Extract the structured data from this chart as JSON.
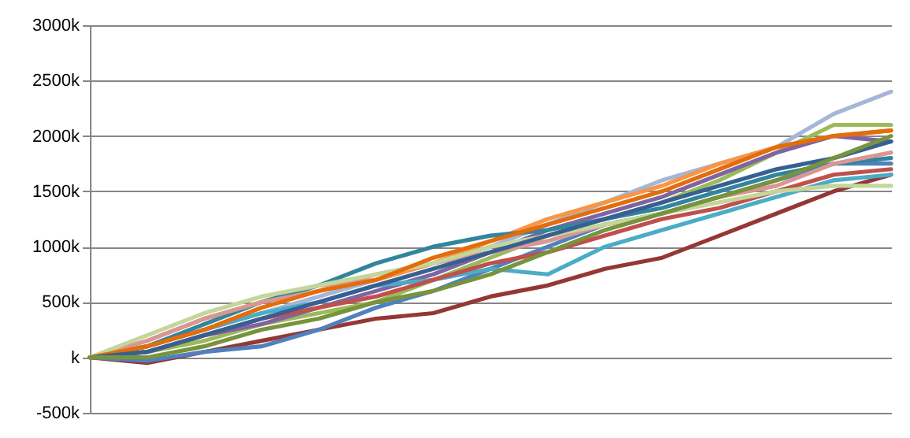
{
  "chart_data": {
    "type": "line",
    "categories": [
      null,
      null,
      null,
      null,
      null,
      null,
      null,
      null,
      null,
      null,
      null,
      null,
      null,
      null,
      null
    ],
    "ylim": [
      -500,
      3000
    ],
    "yticks": [
      {
        "value": -500,
        "label": "-500k"
      },
      {
        "value": 0,
        "label": "k"
      },
      {
        "value": 500,
        "label": "500k"
      },
      {
        "value": 1000,
        "label": "1000k"
      },
      {
        "value": 1500,
        "label": "1500k"
      },
      {
        "value": 2000,
        "label": "2000k"
      },
      {
        "value": 2500,
        "label": "2500k"
      },
      {
        "value": 3000,
        "label": "3000k"
      }
    ],
    "grid": "y",
    "line_style": "solid",
    "marker": "none",
    "series": [
      {
        "color": "#a5b6d8",
        "values": [
          0,
          100,
          250,
          400,
          550,
          700,
          850,
          1000,
          1200,
          1400,
          1600,
          1750,
          1900,
          2200,
          2400
        ]
      },
      {
        "color": "#f79646",
        "values": [
          0,
          150,
          350,
          500,
          650,
          700,
          850,
          1050,
          1250,
          1400,
          1550,
          1750,
          1900,
          2000,
          2050
        ]
      },
      {
        "color": "#953735",
        "values": [
          0,
          -50,
          50,
          150,
          250,
          350,
          400,
          550,
          650,
          800,
          900,
          1100,
          1300,
          1500,
          1650
        ]
      },
      {
        "color": "#9bbb59",
        "values": [
          0,
          50,
          150,
          300,
          400,
          500,
          700,
          900,
          1100,
          1250,
          1400,
          1600,
          1850,
          2100,
          2100
        ]
      },
      {
        "color": "#4f81bd",
        "values": [
          0,
          -30,
          50,
          100,
          250,
          450,
          600,
          800,
          1000,
          1200,
          1300,
          1450,
          1600,
          1750,
          1750
        ]
      },
      {
        "color": "#8064a2",
        "values": [
          0,
          50,
          200,
          300,
          450,
          600,
          750,
          950,
          1150,
          1300,
          1450,
          1650,
          1850,
          2000,
          1950
        ]
      },
      {
        "color": "#4bacc6",
        "values": [
          0,
          100,
          250,
          400,
          500,
          650,
          700,
          800,
          750,
          1000,
          1150,
          1300,
          1450,
          1600,
          1650
        ]
      },
      {
        "color": "#c0504d",
        "values": [
          0,
          50,
          200,
          350,
          450,
          550,
          700,
          850,
          950,
          1100,
          1250,
          1350,
          1500,
          1650,
          1700
        ]
      },
      {
        "color": "#31859c",
        "values": [
          0,
          100,
          300,
          500,
          650,
          850,
          1000,
          1100,
          1150,
          1250,
          1350,
          1500,
          1650,
          1750,
          1800
        ]
      },
      {
        "color": "#d99694",
        "values": [
          0,
          150,
          350,
          500,
          600,
          750,
          850,
          950,
          1050,
          1200,
          1300,
          1450,
          1550,
          1750,
          1850
        ]
      },
      {
        "color": "#c3d69b",
        "values": [
          0,
          200,
          400,
          550,
          650,
          750,
          850,
          1000,
          1100,
          1200,
          1300,
          1400,
          1500,
          1550,
          1550
        ]
      },
      {
        "color": "#e46c0a",
        "values": [
          0,
          100,
          250,
          450,
          600,
          700,
          900,
          1050,
          1200,
          1350,
          1500,
          1700,
          1900,
          2000,
          2050
        ]
      },
      {
        "color": "#376092",
        "values": [
          0,
          50,
          200,
          350,
          500,
          650,
          800,
          950,
          1100,
          1250,
          1400,
          1550,
          1700,
          1800,
          1950
        ]
      },
      {
        "color": "#77933c",
        "values": [
          0,
          0,
          100,
          250,
          350,
          500,
          600,
          750,
          950,
          1150,
          1300,
          1450,
          1600,
          1800,
          2000
        ]
      }
    ]
  }
}
